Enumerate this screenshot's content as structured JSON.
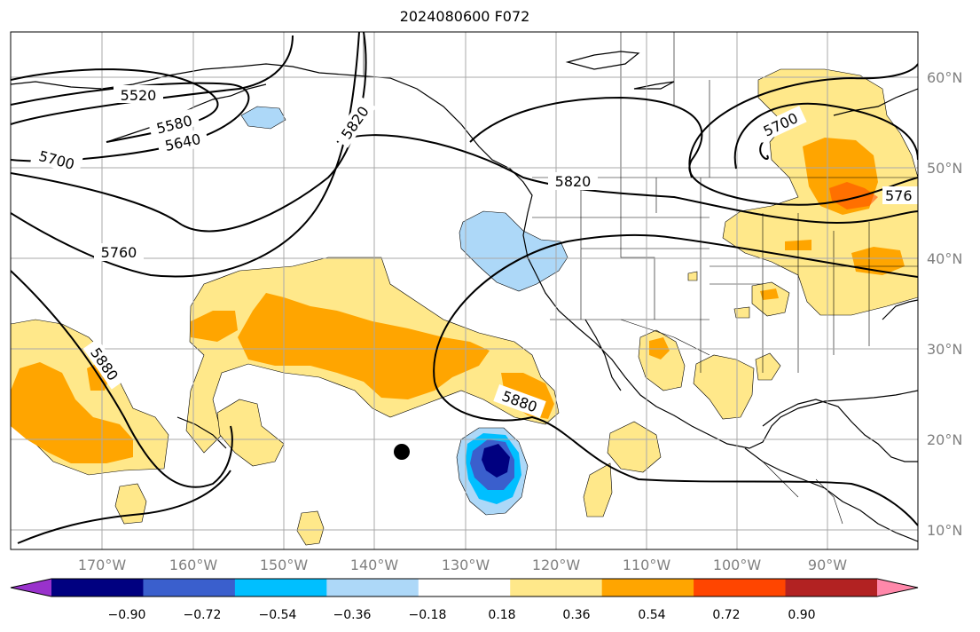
{
  "title": "2024080600 F072",
  "longitude_labels": [
    "170°W",
    "160°W",
    "150°W",
    "140°W",
    "130°W",
    "120°W",
    "110°W",
    "100°W",
    "90°W"
  ],
  "latitude_labels": [
    "60°N",
    "50°N",
    "40°N",
    "30°N",
    "20°N",
    "10°N"
  ],
  "contour_labels": [
    "5520",
    "5580",
    "5640",
    "5700",
    "5760",
    "5820",
    "5880",
    "5820",
    "5880",
    "5700",
    "576"
  ],
  "colorbar": {
    "ticks": [
      "−0.90",
      "−0.72",
      "−0.54",
      "−0.36",
      "−0.18",
      "0.18",
      "0.36",
      "0.54",
      "0.72",
      "0.90"
    ],
    "colors": [
      "#9932cc",
      "#000080",
      "#3a5fcd",
      "#00bfff",
      "#add8f8",
      "#ffffff",
      "#ffe88a",
      "#ffa500",
      "#ff4500",
      "#b22222",
      "#ff88aa"
    ]
  },
  "marker": "storm-center-dot"
}
